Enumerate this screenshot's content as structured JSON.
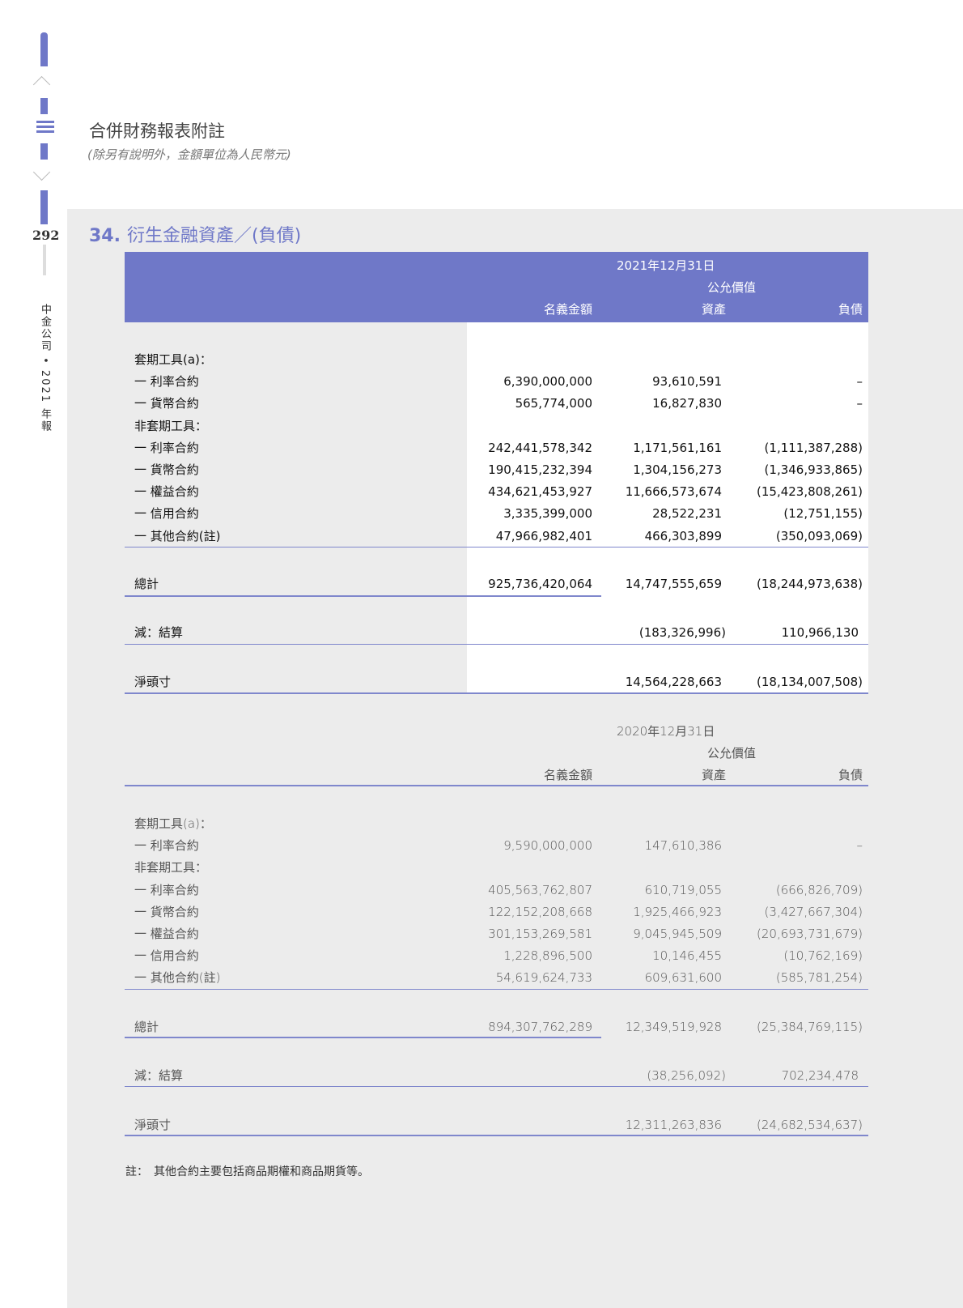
{
  "header": {
    "title": "合併財務報表附註",
    "subtitle": "(除另有說明外，金額單位為人民幣元)"
  },
  "sidebar": {
    "page_number": "292",
    "company_label": "中金公司 • 2021 年報",
    "icons": [
      "chevron-up-icon",
      "menu-list-icon",
      "chevron-down-icon"
    ]
  },
  "section": {
    "number": "34.",
    "title": "衍生金融資產／(負債)"
  },
  "accent_color": "#6f78c8",
  "tables": [
    {
      "date": "2021年12月31日",
      "fair_value_label": "公允價值",
      "columns": [
        "名義金額",
        "資產",
        "負債"
      ],
      "rows": [
        {
          "label": "套期工具(a)：",
          "v": [
            "",
            "",
            ""
          ]
        },
        {
          "label": "一 利率合約",
          "v": [
            "6,390,000,000",
            "93,610,591",
            "–"
          ]
        },
        {
          "label": "一 貨幣合約",
          "v": [
            "565,774,000",
            "16,827,830",
            "–"
          ]
        },
        {
          "label": "非套期工具：",
          "v": [
            "",
            "",
            ""
          ]
        },
        {
          "label": "一 利率合約",
          "v": [
            "242,441,578,342",
            "1,171,561,161",
            "(1,111,387,288)"
          ]
        },
        {
          "label": "一 貨幣合約",
          "v": [
            "190,415,232,394",
            "1,304,156,273",
            "(1,346,933,865)"
          ]
        },
        {
          "label": "一 權益合約",
          "v": [
            "434,621,453,927",
            "11,666,573,674",
            "(15,423,808,261)"
          ]
        },
        {
          "label": "一 信用合約",
          "v": [
            "3,335,399,000",
            "28,522,231",
            "(12,751,155)"
          ]
        },
        {
          "label": "一 其他合約(註)",
          "v": [
            "47,966,982,401",
            "466,303,899",
            "(350,093,069)"
          ]
        }
      ],
      "total": {
        "label": "總計",
        "v": [
          "925,736,420,064",
          "14,747,555,659",
          "(18,244,973,638)"
        ]
      },
      "less": {
        "label": "減：結算",
        "v": [
          "",
          "(183,326,996)",
          "110,966,130"
        ]
      },
      "net": {
        "label": "淨頭寸",
        "v": [
          "",
          "14,564,228,663",
          "(18,134,007,508)"
        ]
      }
    },
    {
      "date": "2020年12月31日",
      "fair_value_label": "公允價值",
      "columns": [
        "名義金額",
        "資產",
        "負債"
      ],
      "rows": [
        {
          "label": "套期工具(a)：",
          "v": [
            "",
            "",
            ""
          ]
        },
        {
          "label": "一 利率合約",
          "v": [
            "9,590,000,000",
            "147,610,386",
            "–"
          ]
        },
        {
          "label": "非套期工具：",
          "v": [
            "",
            "",
            ""
          ]
        },
        {
          "label": "一 利率合約",
          "v": [
            "405,563,762,807",
            "610,719,055",
            "(666,826,709)"
          ]
        },
        {
          "label": "一 貨幣合約",
          "v": [
            "122,152,208,668",
            "1,925,466,923",
            "(3,427,667,304)"
          ]
        },
        {
          "label": "一 權益合約",
          "v": [
            "301,153,269,581",
            "9,045,945,509",
            "(20,693,731,679)"
          ]
        },
        {
          "label": "一 信用合約",
          "v": [
            "1,228,896,500",
            "10,146,455",
            "(10,762,169)"
          ]
        },
        {
          "label": "一 其他合約(註)",
          "v": [
            "54,619,624,733",
            "609,631,600",
            "(585,781,254)"
          ]
        }
      ],
      "total": {
        "label": "總計",
        "v": [
          "894,307,762,289",
          "12,349,519,928",
          "(25,384,769,115)"
        ]
      },
      "less": {
        "label": "減：結算",
        "v": [
          "",
          "(38,256,092)",
          "702,234,478"
        ]
      },
      "net": {
        "label": "淨頭寸",
        "v": [
          "",
          "12,311,263,836",
          "(24,682,534,637)"
        ]
      }
    }
  ],
  "footnote": "註：　其他合約主要包括商品期權和商品期貨等。"
}
